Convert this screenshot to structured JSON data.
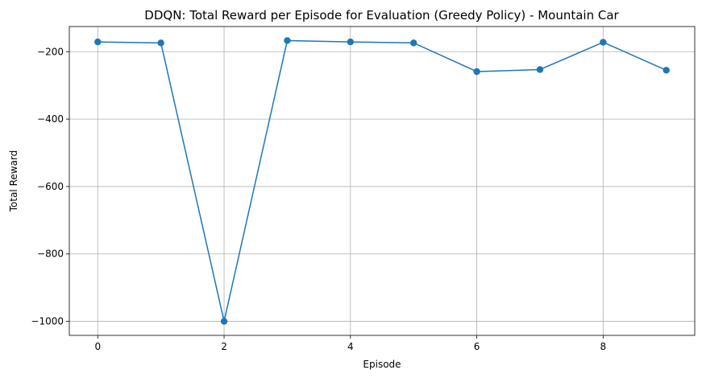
{
  "chart_data": {
    "type": "line",
    "title": "DDQN: Total Reward per Episode for Evaluation (Greedy Policy) - Mountain Car",
    "xlabel": "Episode",
    "ylabel": "Total Reward",
    "x": [
      0,
      1,
      2,
      3,
      4,
      5,
      6,
      7,
      8,
      9
    ],
    "series": [
      {
        "values": [
          -171,
          -174,
          -1000,
          -167,
          -171,
          -174,
          -259,
          -253,
          -172,
          -255
        ],
        "color": "#1f77b4"
      }
    ],
    "xlim": [
      -0.45,
      9.45
    ],
    "ylim": [
      -1041.6,
      -125.4
    ],
    "xticks": [
      0,
      2,
      4,
      6,
      8
    ],
    "yticks": [
      -1000,
      -800,
      -600,
      -400,
      -200
    ],
    "xtick_labels": [
      "0",
      "2",
      "4",
      "6",
      "8"
    ],
    "ytick_labels": [
      "−1000",
      "−800",
      "−600",
      "−400",
      "−200"
    ],
    "grid": true,
    "marker": "circle"
  }
}
